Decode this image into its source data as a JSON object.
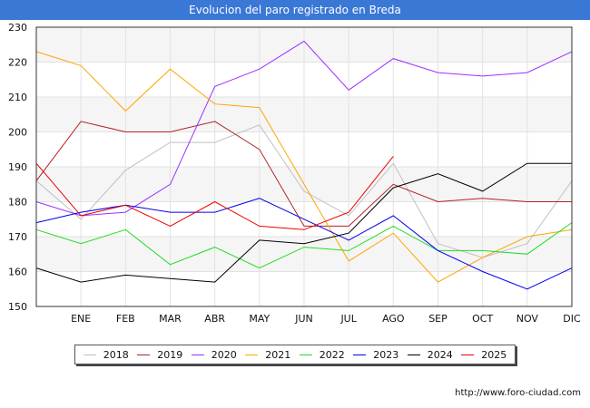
{
  "chart_data": {
    "type": "line",
    "title": "Evolucion del paro registrado en Breda",
    "xlabel": "",
    "ylabel": "",
    "categories": [
      "",
      "ENE",
      "FEB",
      "MAR",
      "ABR",
      "MAY",
      "JUN",
      "JUL",
      "AGO",
      "SEP",
      "OCT",
      "NOV",
      "DIC"
    ],
    "ylim": [
      150,
      230
    ],
    "yticks": [
      150,
      160,
      170,
      180,
      190,
      200,
      210,
      220,
      230
    ],
    "series": [
      {
        "name": "2018",
        "color": "#c0c0c0",
        "values": [
          186,
          175,
          189,
          197,
          197,
          202,
          183,
          176,
          191,
          168,
          164,
          168,
          186
        ]
      },
      {
        "name": "2019",
        "color": "#b22222",
        "values": [
          186,
          203,
          200,
          200,
          203,
          195,
          173,
          173,
          185,
          180,
          181,
          180,
          180
        ]
      },
      {
        "name": "2020",
        "color": "#9b30ff",
        "values": [
          180,
          176,
          177,
          185,
          213,
          218,
          226,
          212,
          221,
          217,
          216,
          217,
          223
        ]
      },
      {
        "name": "2021",
        "color": "#ffa500",
        "values": [
          223,
          219,
          206,
          218,
          208,
          207,
          185,
          163,
          171,
          157,
          164,
          170,
          172
        ]
      },
      {
        "name": "2022",
        "color": "#22dd22",
        "values": [
          172,
          168,
          172,
          162,
          167,
          161,
          167,
          166,
          173,
          166,
          166,
          165,
          174
        ]
      },
      {
        "name": "2023",
        "color": "#0000ee",
        "values": [
          174,
          177,
          179,
          177,
          177,
          181,
          175,
          169,
          176,
          166,
          160,
          155,
          161
        ]
      },
      {
        "name": "2024",
        "color": "#000000",
        "values": [
          161,
          157,
          159,
          158,
          157,
          169,
          168,
          171,
          184,
          188,
          183,
          191,
          191
        ]
      },
      {
        "name": "2025",
        "color": "#ee0000",
        "values": [
          191,
          176,
          179,
          173,
          180,
          173,
          172,
          177,
          193,
          null,
          null,
          null,
          null
        ]
      }
    ]
  },
  "source": "http://www.foro-ciudad.com"
}
